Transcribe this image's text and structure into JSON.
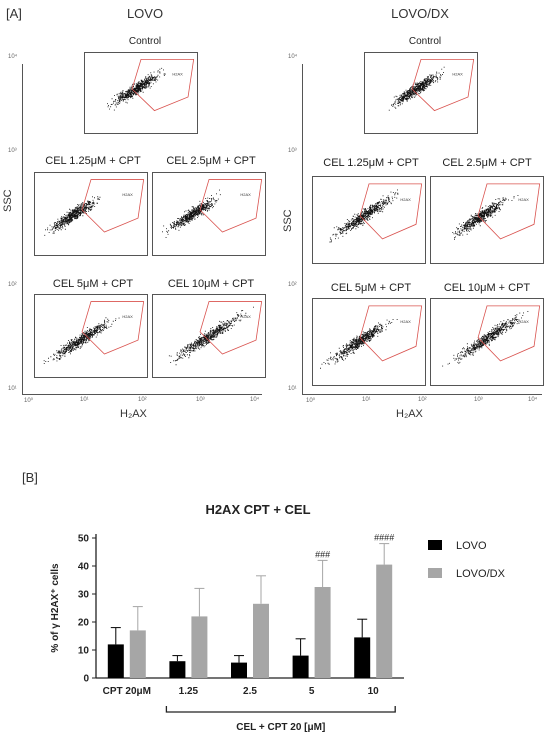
{
  "panel_a": {
    "label": "[A]",
    "groups": [
      {
        "title": "LOVO",
        "ylabel": "SSC",
        "xlabel": "H₂AX",
        "plots": [
          "Control",
          "CEL 1.25μM + CPT",
          "CEL 2.5μM + CPT",
          "CEL 5μM + CPT",
          "CEL 10μM + CPT"
        ]
      },
      {
        "title": "LOVO/DX",
        "ylabel": "SSC",
        "xlabel": "H₂AX",
        "plots": [
          "Control",
          "CEL 1.25μM + CPT",
          "CEL 2.5μM + CPT",
          "CEL 5μM + CPT",
          "CEL 10μM + CPT"
        ]
      }
    ],
    "gate_label": "H2AX",
    "axis_ticks": [
      "10⁰",
      "10¹",
      "10²",
      "10³",
      "10⁴"
    ],
    "gate_color": "#d9534f"
  },
  "panel_b": {
    "label": "[B]"
  },
  "chart_data": {
    "type": "bar",
    "title": "H2AX CPT + CEL",
    "ylabel": "% of γ H2AX⁺ cells",
    "xlabel": "CEL + CPT 20 [μM]",
    "categories": [
      "CPT 20μM",
      "1.25",
      "2.5",
      "5",
      "10"
    ],
    "ylim": [
      0,
      50
    ],
    "yticks": [
      0,
      10,
      20,
      30,
      40,
      50
    ],
    "series": [
      {
        "name": "LOVO",
        "color": "#000000",
        "values": [
          12,
          6,
          5.5,
          8,
          14.5
        ],
        "errors": [
          6,
          2,
          2.5,
          6,
          6.5
        ]
      },
      {
        "name": "LOVO/DX",
        "color": "#a6a6a6",
        "values": [
          17,
          22,
          26.5,
          32.5,
          40.5
        ],
        "errors": [
          8.5,
          10,
          10,
          9.5,
          7.5
        ]
      }
    ],
    "annotations": [
      {
        "category": "5",
        "series": "LOVO/DX",
        "text": "###"
      },
      {
        "category": "10",
        "series": "LOVO/DX",
        "text": "####"
      }
    ],
    "legend_position": "right"
  }
}
